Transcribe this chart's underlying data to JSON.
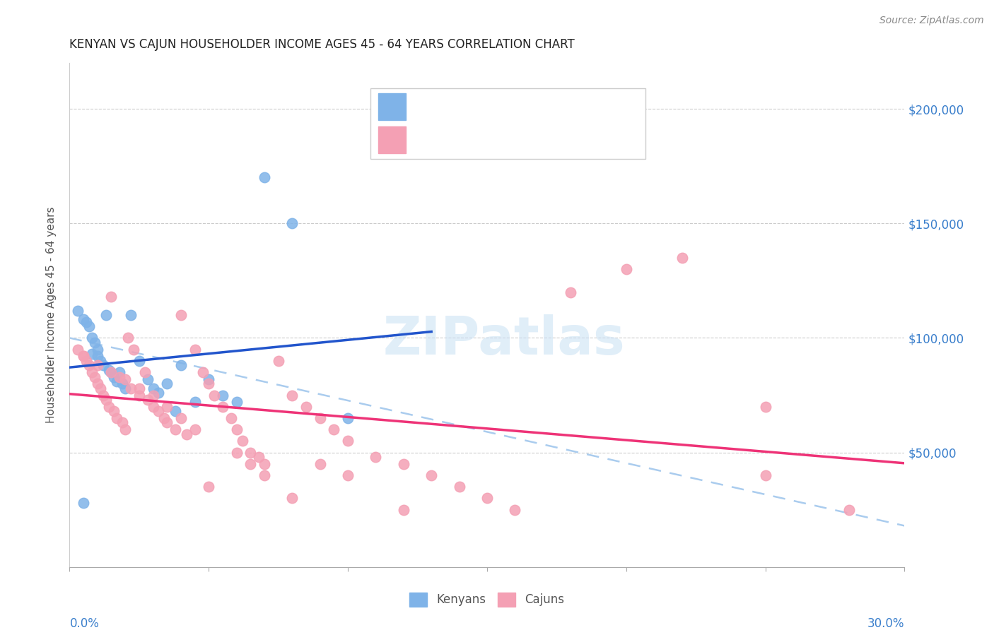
{
  "title": "KENYAN VS CAJUN HOUSEHOLDER INCOME AGES 45 - 64 YEARS CORRELATION CHART",
  "source": "Source: ZipAtlas.com",
  "ylabel": "Householder Income Ages 45 - 64 years",
  "watermark": "ZIPatlas",
  "kenyan_color": "#7fb3e8",
  "cajun_color": "#f4a0b4",
  "kenyan_line_color": "#2255cc",
  "cajun_line_color": "#ee3377",
  "dashed_line_color": "#aaccee",
  "ylim": [
    0,
    220000
  ],
  "xlim": [
    0.0,
    0.3
  ],
  "yticks": [
    0,
    50000,
    100000,
    150000,
    200000
  ],
  "ytick_labels": [
    "",
    "$50,000",
    "$100,000",
    "$150,000",
    "$200,000"
  ],
  "kenyan_x": [
    0.003,
    0.005,
    0.005,
    0.006,
    0.007,
    0.008,
    0.008,
    0.009,
    0.01,
    0.01,
    0.011,
    0.012,
    0.013,
    0.014,
    0.015,
    0.016,
    0.017,
    0.018,
    0.019,
    0.02,
    0.022,
    0.025,
    0.028,
    0.03,
    0.032,
    0.035,
    0.038,
    0.04,
    0.045,
    0.05,
    0.055,
    0.06,
    0.07,
    0.08,
    0.1
  ],
  "kenyan_y": [
    112000,
    108000,
    28000,
    107000,
    105000,
    100000,
    93000,
    98000,
    95000,
    92000,
    90000,
    88000,
    110000,
    86000,
    85000,
    83000,
    81000,
    85000,
    80000,
    78000,
    110000,
    90000,
    82000,
    78000,
    76000,
    80000,
    68000,
    88000,
    72000,
    82000,
    75000,
    72000,
    170000,
    150000,
    65000
  ],
  "cajun_x": [
    0.003,
    0.005,
    0.006,
    0.007,
    0.008,
    0.009,
    0.01,
    0.011,
    0.012,
    0.013,
    0.014,
    0.015,
    0.016,
    0.017,
    0.018,
    0.019,
    0.02,
    0.021,
    0.022,
    0.023,
    0.025,
    0.027,
    0.028,
    0.03,
    0.032,
    0.034,
    0.035,
    0.038,
    0.04,
    0.042,
    0.045,
    0.048,
    0.05,
    0.052,
    0.055,
    0.058,
    0.06,
    0.062,
    0.065,
    0.068,
    0.07,
    0.075,
    0.08,
    0.085,
    0.09,
    0.095,
    0.1,
    0.11,
    0.12,
    0.13,
    0.14,
    0.15,
    0.16,
    0.18,
    0.2,
    0.22,
    0.25,
    0.005,
    0.01,
    0.015,
    0.02,
    0.025,
    0.03,
    0.035,
    0.04,
    0.045,
    0.05,
    0.06,
    0.065,
    0.07,
    0.08,
    0.09,
    0.1,
    0.12,
    0.25,
    0.28
  ],
  "cajun_y": [
    95000,
    92000,
    90000,
    88000,
    85000,
    83000,
    80000,
    78000,
    75000,
    73000,
    70000,
    118000,
    68000,
    65000,
    83000,
    63000,
    60000,
    100000,
    78000,
    95000,
    75000,
    85000,
    73000,
    70000,
    68000,
    65000,
    63000,
    60000,
    110000,
    58000,
    95000,
    85000,
    80000,
    75000,
    70000,
    65000,
    60000,
    55000,
    50000,
    48000,
    45000,
    90000,
    75000,
    70000,
    65000,
    60000,
    55000,
    48000,
    45000,
    40000,
    35000,
    30000,
    25000,
    120000,
    130000,
    135000,
    40000,
    92000,
    88000,
    85000,
    82000,
    78000,
    75000,
    70000,
    65000,
    60000,
    35000,
    50000,
    45000,
    40000,
    30000,
    45000,
    40000,
    25000,
    70000,
    25000
  ]
}
